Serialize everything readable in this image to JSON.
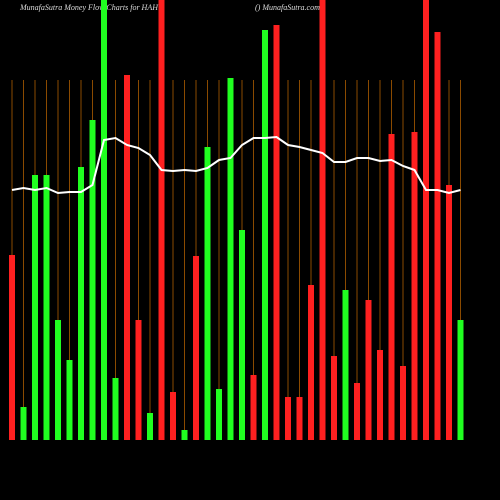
{
  "chart_data": {
    "type": "bar",
    "title": "MunafaSutra  Money Flow  Charts for HAH",
    "subtitle": "() MunafaSutra.com",
    "categories": [
      null,
      null,
      null,
      null,
      null,
      null,
      null,
      null,
      null,
      null,
      null,
      null,
      null,
      null,
      null,
      null,
      null,
      null,
      null,
      null,
      null,
      null,
      null,
      null,
      null,
      null,
      null,
      null,
      null,
      null,
      null,
      null,
      null,
      null,
      null,
      null,
      null,
      null,
      null,
      null
    ],
    "values": [
      185,
      33,
      265,
      265,
      120,
      80,
      273,
      320,
      440,
      62,
      365,
      120,
      27,
      440,
      48,
      10,
      184,
      293,
      51,
      362,
      210,
      65,
      410,
      415,
      43,
      43,
      155,
      440,
      84,
      150,
      57,
      140,
      90,
      306,
      74,
      308,
      440,
      408,
      255,
      120
    ],
    "bar_colors": [
      "#ff2020",
      "#20ff20",
      "#20ff20",
      "#20ff20",
      "#20ff20",
      "#20ff20",
      "#20ff20",
      "#20ff20",
      "#20ff20",
      "#20ff20",
      "#ff2020",
      "#ff2020",
      "#20ff20",
      "#ff2020",
      "#ff2020",
      "#20ff20",
      "#ff2020",
      "#20ff20",
      "#20ff20",
      "#20ff20",
      "#20ff20",
      "#ff2020",
      "#20ff20",
      "#ff2020",
      "#ff2020",
      "#ff2020",
      "#ff2020",
      "#ff2020",
      "#ff2020",
      "#20ff20",
      "#ff2020",
      "#ff2020",
      "#ff2020",
      "#ff2020",
      "#ff2020",
      "#ff2020",
      "#ff2020",
      "#ff2020",
      "#ff2020",
      "#20ff20"
    ],
    "line": {
      "color": "#ffffff",
      "values": [
        250,
        252,
        250,
        252,
        247,
        248,
        248,
        255,
        300,
        302,
        295,
        292,
        285,
        270,
        269,
        270,
        269,
        272,
        280,
        282,
        295,
        302,
        302,
        303,
        295,
        293,
        290,
        287,
        278,
        278,
        282,
        282,
        279,
        280,
        274,
        270,
        250,
        250,
        247,
        250
      ]
    },
    "ylim": [
      0,
      440
    ],
    "grid": true,
    "grid_color": "#8a4a00"
  }
}
